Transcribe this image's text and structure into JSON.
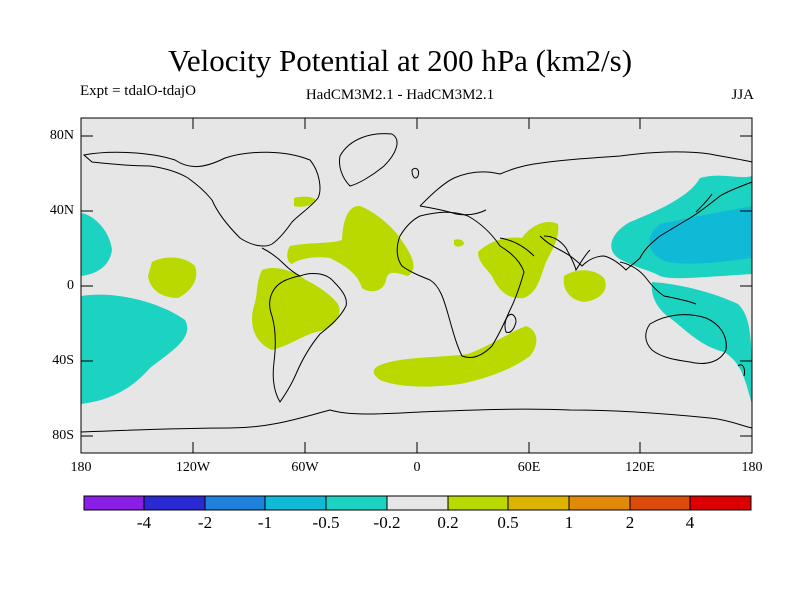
{
  "title": "Velocity Potential at 200 hPa (km2/s)",
  "subtitle_left": "Expt = tdalO-tdajO",
  "subtitle_center": "HadCM3M2.1 - HadCM3M2.1",
  "subtitle_right": "JJA",
  "lat_labels": [
    "80N",
    "40N",
    "0",
    "40S",
    "80S"
  ],
  "lon_labels": [
    "180",
    "120W",
    "60W",
    "0",
    "60E",
    "120E",
    "180"
  ],
  "colorbar": {
    "labels": [
      "-4",
      "-2",
      "-1",
      "-0.5",
      "-0.2",
      "0.2",
      "0.5",
      "1",
      "2",
      "4"
    ],
    "colors": [
      "#8a1ee6",
      "#2a2ad2",
      "#1e82dc",
      "#10bad6",
      "#1cd2c0",
      "#e6e6e6",
      "#b9d900",
      "#dcb400",
      "#e18a0a",
      "#dc4b0a",
      "#dc0000"
    ]
  },
  "palette": {
    "neutral": "#e6e6e6",
    "positive_light": "#b9d900",
    "negative_light": "#1cd2c0",
    "negative_mid": "#10bad6"
  }
}
